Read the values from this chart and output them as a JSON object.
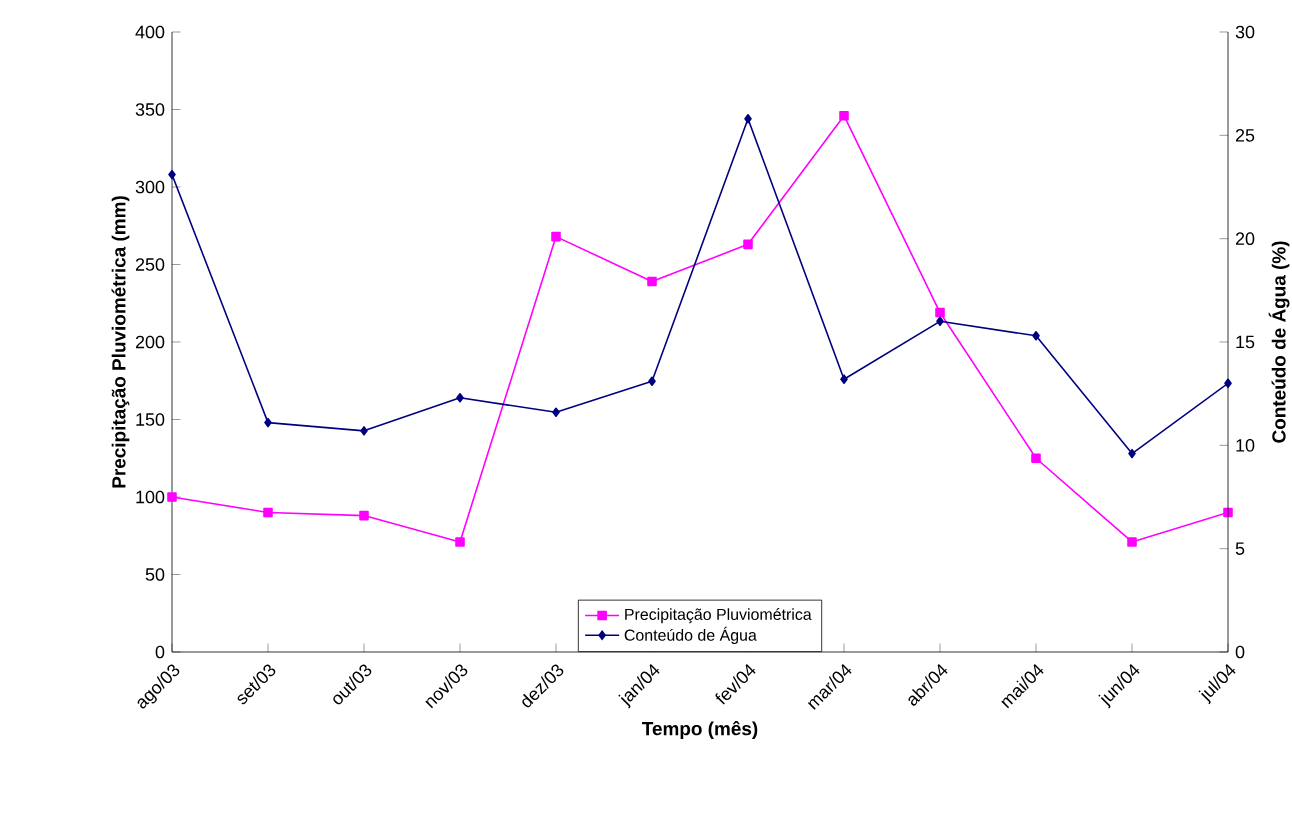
{
  "chart_data": {
    "type": "line",
    "xlabel": "Tempo (mês)",
    "ylabel": "Precipitação Pluviométrica (mm)",
    "y2label": "Conteúdo de Água (%)",
    "categories": [
      "ago/03",
      "set/03",
      "out/03",
      "nov/03",
      "dez/03",
      "jan/04",
      "fev/04",
      "mar/04",
      "abr/04",
      "mai/04",
      "jun/04",
      "jul/04"
    ],
    "series": [
      {
        "name": "Precipitação Pluviométrica",
        "color": "#ff00ff",
        "marker": "square",
        "values": [
          100,
          90,
          88,
          71,
          268,
          239,
          263,
          346,
          219,
          125,
          71,
          90
        ]
      },
      {
        "name": "Conteúdo de Água",
        "color": "#000080",
        "marker": "diamond",
        "axis": "y2",
        "values": [
          23.1,
          11.1,
          10.7,
          12.3,
          11.6,
          13.1,
          25.8,
          13.2,
          16.0,
          15.3,
          9.6,
          13.0
        ]
      }
    ],
    "ylim": [
      0,
      400
    ],
    "yticks": [
      0,
      50,
      100,
      150,
      200,
      250,
      300,
      350,
      400
    ],
    "y2lim": [
      0,
      30
    ],
    "y2ticks": [
      0,
      5,
      10,
      15,
      20,
      25,
      30
    ],
    "legend": "bottom",
    "grid": false
  }
}
